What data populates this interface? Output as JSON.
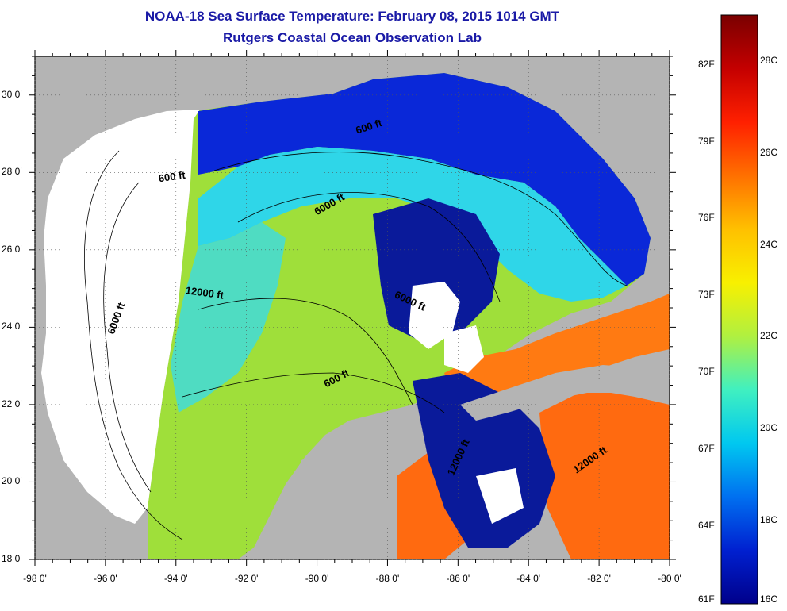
{
  "title_line1": "NOAA-18 Sea Surface Temperature:  February 08, 2015 1014 GMT",
  "title_line2": "Rutgers Coastal Ocean Observation Lab",
  "map": {
    "lat_labels": [
      {
        "text": "30 0'",
        "lat": 30
      },
      {
        "text": "28 0'",
        "lat": 28
      },
      {
        "text": "26 0'",
        "lat": 26
      },
      {
        "text": "24 0'",
        "lat": 24
      },
      {
        "text": "22 0'",
        "lat": 22
      },
      {
        "text": "20 0'",
        "lat": 20
      },
      {
        "text": "18 0'",
        "lat": 18
      }
    ],
    "lon_labels": [
      {
        "text": "-98 0'",
        "lon": -98
      },
      {
        "text": "-96 0'",
        "lon": -96
      },
      {
        "text": "-94 0'",
        "lon": -94
      },
      {
        "text": "-92 0'",
        "lon": -92
      },
      {
        "text": "-90 0'",
        "lon": -90
      },
      {
        "text": "-88 0'",
        "lon": -88
      },
      {
        "text": "-86 0'",
        "lon": -86
      },
      {
        "text": "-84 0'",
        "lon": -84
      },
      {
        "text": "-82 0'",
        "lon": -82
      },
      {
        "text": "-80 0'",
        "lon": -80
      }
    ],
    "lon_range": [
      -98,
      -80
    ],
    "lat_range": [
      18,
      31
    ],
    "contour_labels": [
      {
        "text": "600 ft",
        "lon": -88.5,
        "lat": 29.1,
        "angle": -18
      },
      {
        "text": "600 ft",
        "lon": -94.1,
        "lat": 27.8,
        "angle": -8
      },
      {
        "text": "6000 ft",
        "lon": -89.6,
        "lat": 27.1,
        "angle": -30
      },
      {
        "text": "12000 ft",
        "lon": -93.2,
        "lat": 24.8,
        "angle": 8
      },
      {
        "text": "6000 ft",
        "lon": -95.6,
        "lat": 24.2,
        "angle": -70
      },
      {
        "text": "6000 ft",
        "lon": -87.4,
        "lat": 24.6,
        "angle": 25
      },
      {
        "text": "600 ft",
        "lon": -89.4,
        "lat": 22.6,
        "angle": -28
      },
      {
        "text": "12000 ft",
        "lon": -85.9,
        "lat": 20.6,
        "angle": -65
      },
      {
        "text": "12000 ft",
        "lon": -82.2,
        "lat": 20.5,
        "angle": -35
      }
    ],
    "colors": {
      "land": "#b4b4b4",
      "cloud": "#ffffff",
      "grid": "#555555"
    }
  },
  "colorbar": {
    "f_labels": [
      {
        "text": "82F",
        "frac": 0.0935
      },
      {
        "text": "79F",
        "frac": 0.2404
      },
      {
        "text": "76F",
        "frac": 0.387
      },
      {
        "text": "73F",
        "frac": 0.5338
      },
      {
        "text": "70F",
        "frac": 0.6805
      },
      {
        "text": "67F",
        "frac": 0.8268
      },
      {
        "text": "64F",
        "frac": 0.974
      },
      {
        "text": "61F",
        "frac": 1.12
      }
    ],
    "c_labels": [
      {
        "text": "28C",
        "frac": 0.086
      },
      {
        "text": "26C",
        "frac": 0.2615
      },
      {
        "text": "24C",
        "frac": 0.4372
      },
      {
        "text": "22C",
        "frac": 0.6126
      },
      {
        "text": "20C",
        "frac": 0.7886
      },
      {
        "text": "18C",
        "frac": 0.964
      },
      {
        "text": "16C",
        "frac": 1.14
      }
    ],
    "stops": [
      "#7a0000",
      "#c40000",
      "#ff2000",
      "#ff7000",
      "#ffc000",
      "#f8f000",
      "#b0f040",
      "#40f0c0",
      "#00c8f0",
      "#0070f0",
      "#0020d0",
      "#00008a"
    ]
  }
}
